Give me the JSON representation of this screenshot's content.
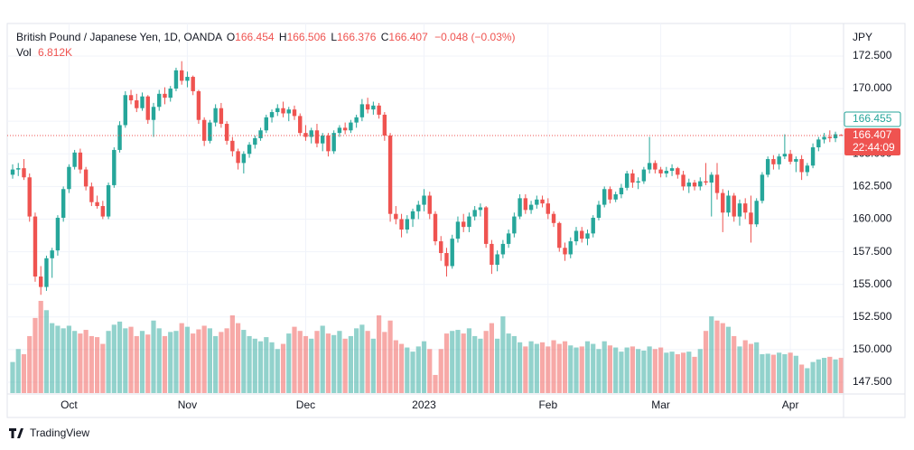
{
  "chart_data": {
    "type": "candlestick",
    "title": "British Pound / Japanese Yen, 1D, OANDA",
    "ohlc_labels": [
      "O",
      "H",
      "L",
      "C"
    ],
    "change_label": "−0.048 (−0.03%)",
    "y_axis_label": "JPY",
    "up_color": "#26a69a",
    "down_color": "#ef5350",
    "grid": true,
    "ylim": [
      146.67,
      174.85
    ],
    "yticks": [
      {
        "value": 147.5,
        "label": "147.500"
      },
      {
        "value": 150,
        "label": "150.000"
      },
      {
        "value": 152.5,
        "label": "152.500"
      },
      {
        "value": 155,
        "label": "155.000"
      },
      {
        "value": 157.5,
        "label": "157.500"
      },
      {
        "value": 160,
        "label": "160.000"
      },
      {
        "value": 162.5,
        "label": "162.500"
      },
      {
        "value": 165,
        "label": "165.000"
      },
      {
        "value": 167.5,
        "label": "167.500"
      },
      {
        "value": 170,
        "label": "170.000"
      },
      {
        "value": 172.5,
        "label": "172.500"
      }
    ],
    "xticks": [
      {
        "value": 10,
        "label": "Oct"
      },
      {
        "value": 31,
        "label": "Nov"
      },
      {
        "value": 52,
        "label": "Dec"
      },
      {
        "value": 73,
        "label": "2023"
      },
      {
        "value": 95,
        "label": "Feb"
      },
      {
        "value": 115,
        "label": "Mar"
      },
      {
        "value": 138,
        "label": "Apr"
      }
    ],
    "price_tags": [
      {
        "value": 166.455,
        "label": "166.455",
        "color": "#26a69a"
      },
      {
        "value": 166.407,
        "label": "166.407",
        "countdown": "22:44:09",
        "color": "#ef5350"
      }
    ],
    "brand": "TradingView",
    "candles": [
      [
        163.4,
        164.2,
        163.1,
        163.8
      ],
      [
        163.8,
        164.3,
        163.3,
        163.9
      ],
      [
        163.9,
        164.6,
        163.0,
        163.2
      ],
      [
        163.2,
        163.5,
        159.8,
        160.2
      ],
      [
        160.2,
        160.5,
        155.2,
        155.6
      ],
      [
        155.6,
        156.4,
        154.2,
        154.8
      ],
      [
        154.8,
        157.2,
        154.5,
        157.0
      ],
      [
        157.0,
        157.8,
        155.5,
        157.6
      ],
      [
        157.6,
        160.3,
        157.2,
        160.1
      ],
      [
        160.1,
        162.5,
        159.8,
        162.3
      ],
      [
        162.3,
        164.2,
        162.0,
        164.0
      ],
      [
        164.0,
        165.3,
        163.8,
        165.1
      ],
      [
        165.1,
        165.4,
        163.5,
        163.8
      ],
      [
        163.8,
        164.0,
        162.2,
        162.5
      ],
      [
        162.5,
        162.8,
        161.0,
        161.3
      ],
      [
        161.3,
        161.8,
        160.8,
        161.0
      ],
      [
        161.0,
        161.4,
        160.0,
        160.2
      ],
      [
        160.2,
        162.8,
        160.0,
        162.6
      ],
      [
        162.6,
        165.5,
        162.4,
        165.3
      ],
      [
        165.3,
        167.5,
        165.1,
        167.2
      ],
      [
        167.2,
        169.8,
        167.0,
        169.5
      ],
      [
        169.5,
        169.9,
        168.8,
        169.1
      ],
      [
        169.1,
        169.6,
        168.2,
        168.5
      ],
      [
        168.5,
        169.7,
        168.3,
        169.4
      ],
      [
        169.4,
        169.5,
        167.3,
        167.6
      ],
      [
        167.6,
        168.9,
        166.3,
        168.6
      ],
      [
        168.6,
        169.9,
        168.3,
        169.6
      ],
      [
        169.6,
        170.1,
        168.8,
        169.3
      ],
      [
        169.3,
        170.2,
        169.0,
        170.0
      ],
      [
        170.0,
        171.6,
        169.8,
        171.4
      ],
      [
        171.4,
        172.1,
        170.3,
        170.6
      ],
      [
        170.6,
        171.3,
        170.1,
        170.9
      ],
      [
        170.9,
        171.0,
        169.5,
        169.8
      ],
      [
        169.8,
        169.9,
        167.3,
        167.6
      ],
      [
        167.6,
        167.8,
        165.6,
        166.0
      ],
      [
        166.0,
        167.6,
        165.8,
        167.4
      ],
      [
        167.4,
        168.8,
        167.1,
        168.5
      ],
      [
        168.5,
        168.9,
        167.0,
        167.3
      ],
      [
        167.3,
        167.5,
        165.7,
        166.0
      ],
      [
        166.0,
        166.3,
        164.8,
        165.2
      ],
      [
        165.2,
        165.4,
        163.8,
        164.3
      ],
      [
        164.3,
        165.2,
        163.5,
        165.0
      ],
      [
        165.0,
        165.9,
        164.7,
        165.7
      ],
      [
        165.7,
        166.4,
        165.4,
        166.2
      ],
      [
        166.2,
        167.0,
        166.0,
        166.8
      ],
      [
        166.8,
        168.0,
        166.6,
        167.8
      ],
      [
        167.8,
        168.4,
        167.4,
        168.2
      ],
      [
        168.2,
        168.8,
        167.9,
        168.5
      ],
      [
        168.5,
        169.0,
        167.8,
        168.1
      ],
      [
        168.1,
        168.6,
        167.5,
        168.4
      ],
      [
        168.4,
        168.7,
        167.6,
        167.9
      ],
      [
        167.9,
        168.1,
        166.4,
        166.6
      ],
      [
        166.6,
        167.2,
        166.0,
        166.3
      ],
      [
        166.3,
        167.0,
        165.8,
        166.8
      ],
      [
        166.8,
        167.3,
        165.5,
        165.8
      ],
      [
        165.8,
        166.6,
        165.2,
        166.4
      ],
      [
        166.4,
        166.6,
        164.8,
        165.2
      ],
      [
        165.2,
        166.8,
        165.0,
        166.6
      ],
      [
        166.6,
        167.2,
        166.3,
        167.0
      ],
      [
        167.0,
        167.4,
        166.5,
        166.8
      ],
      [
        166.8,
        167.6,
        166.6,
        167.4
      ],
      [
        167.4,
        168.0,
        167.0,
        167.8
      ],
      [
        167.8,
        169.2,
        167.5,
        168.8
      ],
      [
        168.8,
        169.3,
        168.1,
        168.4
      ],
      [
        168.4,
        169.0,
        168.0,
        168.7
      ],
      [
        168.7,
        168.9,
        167.7,
        168.0
      ],
      [
        168.0,
        168.2,
        166.0,
        166.4
      ],
      [
        166.4,
        166.6,
        159.8,
        160.4
      ],
      [
        160.4,
        161.0,
        159.6,
        160.0
      ],
      [
        160.0,
        160.4,
        158.6,
        159.2
      ],
      [
        159.2,
        160.3,
        158.9,
        160.0
      ],
      [
        160.0,
        160.8,
        159.4,
        160.6
      ],
      [
        160.6,
        161.4,
        160.0,
        161.1
      ],
      [
        161.1,
        162.3,
        160.6,
        161.8
      ],
      [
        161.8,
        162.1,
        160.0,
        160.4
      ],
      [
        160.4,
        160.6,
        158.0,
        158.3
      ],
      [
        158.3,
        158.7,
        156.8,
        157.4
      ],
      [
        157.4,
        157.8,
        155.6,
        156.4
      ],
      [
        156.4,
        158.8,
        156.2,
        158.5
      ],
      [
        158.5,
        160.2,
        158.2,
        159.8
      ],
      [
        159.8,
        160.4,
        159.0,
        159.4
      ],
      [
        159.4,
        160.5,
        159.0,
        160.2
      ],
      [
        160.2,
        161.0,
        159.9,
        160.7
      ],
      [
        160.7,
        161.2,
        160.2,
        160.9
      ],
      [
        160.9,
        161.0,
        157.8,
        158.1
      ],
      [
        158.1,
        158.4,
        155.8,
        156.5
      ],
      [
        156.5,
        157.6,
        156.0,
        157.3
      ],
      [
        157.3,
        158.4,
        157.0,
        158.1
      ],
      [
        158.1,
        159.2,
        157.8,
        158.9
      ],
      [
        158.9,
        160.5,
        158.6,
        160.2
      ],
      [
        160.2,
        161.9,
        160.0,
        161.6
      ],
      [
        161.6,
        161.9,
        160.4,
        160.7
      ],
      [
        160.7,
        161.4,
        160.4,
        161.1
      ],
      [
        161.1,
        161.8,
        160.8,
        161.5
      ],
      [
        161.5,
        161.8,
        160.9,
        161.2
      ],
      [
        161.2,
        161.6,
        160.0,
        160.4
      ],
      [
        160.4,
        160.6,
        159.4,
        159.7
      ],
      [
        159.7,
        159.8,
        157.5,
        157.8
      ],
      [
        157.8,
        158.2,
        156.8,
        157.3
      ],
      [
        157.3,
        158.6,
        157.0,
        158.3
      ],
      [
        158.3,
        159.4,
        158.0,
        159.1
      ],
      [
        159.1,
        159.4,
        158.2,
        158.5
      ],
      [
        158.5,
        159.2,
        158.0,
        158.9
      ],
      [
        158.9,
        160.3,
        158.6,
        160.1
      ],
      [
        160.1,
        161.4,
        159.9,
        161.1
      ],
      [
        161.1,
        162.5,
        160.9,
        162.3
      ],
      [
        162.3,
        162.5,
        161.2,
        161.5
      ],
      [
        161.5,
        162.1,
        161.3,
        161.9
      ],
      [
        161.9,
        162.7,
        161.6,
        162.4
      ],
      [
        162.4,
        163.7,
        162.2,
        163.5
      ],
      [
        163.5,
        163.8,
        162.4,
        162.8
      ],
      [
        162.8,
        163.2,
        162.3,
        162.9
      ],
      [
        162.9,
        164.0,
        162.7,
        163.8
      ],
      [
        163.8,
        166.3,
        163.5,
        164.3
      ],
      [
        164.3,
        164.5,
        163.5,
        163.8
      ],
      [
        163.8,
        164.0,
        163.2,
        163.5
      ],
      [
        163.5,
        164.0,
        163.2,
        163.7
      ],
      [
        163.7,
        164.2,
        163.3,
        163.9
      ],
      [
        163.9,
        164.0,
        163.1,
        163.4
      ],
      [
        163.4,
        163.7,
        162.2,
        162.5
      ],
      [
        162.5,
        163.1,
        162.0,
        162.8
      ],
      [
        162.8,
        163.0,
        162.2,
        162.5
      ],
      [
        162.5,
        163.2,
        162.2,
        162.9
      ],
      [
        162.9,
        164.3,
        162.6,
        162.8
      ],
      [
        162.8,
        163.6,
        160.2,
        163.4
      ],
      [
        163.4,
        164.3,
        161.5,
        162.0
      ],
      [
        162.0,
        162.3,
        159.0,
        160.5
      ],
      [
        160.5,
        162.2,
        160.2,
        161.8
      ],
      [
        161.8,
        162.0,
        159.8,
        160.2
      ],
      [
        160.2,
        161.5,
        159.5,
        161.2
      ],
      [
        161.2,
        161.6,
        160.0,
        160.5
      ],
      [
        160.5,
        161.8,
        158.2,
        159.6
      ],
      [
        159.6,
        161.6,
        159.4,
        161.4
      ],
      [
        161.4,
        163.6,
        161.2,
        163.4
      ],
      [
        163.4,
        164.8,
        163.2,
        164.6
      ],
      [
        164.6,
        164.9,
        163.8,
        164.2
      ],
      [
        164.2,
        165.0,
        163.8,
        164.8
      ],
      [
        164.8,
        166.5,
        164.6,
        165.0
      ],
      [
        165.0,
        165.3,
        164.2,
        164.4
      ],
      [
        164.4,
        164.8,
        163.6,
        164.6
      ],
      [
        164.6,
        164.9,
        163.0,
        163.6
      ],
      [
        163.6,
        164.3,
        163.3,
        164.1
      ],
      [
        164.1,
        165.8,
        163.9,
        165.5
      ],
      [
        165.5,
        166.3,
        165.2,
        166.1
      ],
      [
        166.1,
        166.6,
        165.8,
        166.3
      ],
      [
        166.3,
        166.8,
        165.9,
        166.2
      ],
      [
        166.2,
        166.7,
        165.9,
        166.5
      ],
      [
        166.454,
        166.506,
        166.376,
        166.407
      ]
    ],
    "volume": {
      "label": "Vol",
      "last_label": "6.812K",
      "vlim": [
        0,
        71
      ],
      "values": [
        6.0,
        8.5,
        7.5,
        11.0,
        14.5,
        17.8,
        16.0,
        13.5,
        13.0,
        12.5,
        13.0,
        12.0,
        11.5,
        12.2,
        11.0,
        10.8,
        9.5,
        12.0,
        13.2,
        13.8,
        12.5,
        12.8,
        11.0,
        12.0,
        11.3,
        14.0,
        12.5,
        11.0,
        11.8,
        12.0,
        13.5,
        12.8,
        11.5,
        12.3,
        13.0,
        12.5,
        11.0,
        11.8,
        12.5,
        15.0,
        13.5,
        12.2,
        11.0,
        10.5,
        10.0,
        10.8,
        9.8,
        8.5,
        9.5,
        11.5,
        12.8,
        12.0,
        11.0,
        10.5,
        12.0,
        13.0,
        11.5,
        11.2,
        12.0,
        10.5,
        11.0,
        12.5,
        13.2,
        12.0,
        10.5,
        15.0,
        11.8,
        14.0,
        10.2,
        9.5,
        8.8,
        8.0,
        9.0,
        10.0,
        8.5,
        3.5,
        8.5,
        11.5,
        12.0,
        12.2,
        11.5,
        12.5,
        11.0,
        10.5,
        12.0,
        13.5,
        10.5,
        14.8,
        11.5,
        11.0,
        9.8,
        9.0,
        10.0,
        9.5,
        9.8,
        9.0,
        10.2,
        9.5,
        10.0,
        9.2,
        8.8,
        9.0,
        10.0,
        9.5,
        8.5,
        10.0,
        9.2,
        8.8,
        8.0,
        8.8,
        9.0,
        8.5,
        8.2,
        9.0,
        8.5,
        8.8,
        7.8,
        8.0,
        7.5,
        7.8,
        8.0,
        7.0,
        8.5,
        12.0,
        14.8,
        14.0,
        13.5,
        12.8,
        11.0,
        9.0,
        10.2,
        9.5,
        9.8,
        7.5,
        7.6,
        7.4,
        7.8,
        7.5,
        7.8,
        7.2,
        5.5,
        4.8,
        6.0,
        6.5,
        6.8,
        7.0,
        6.5,
        6.812
      ]
    }
  }
}
